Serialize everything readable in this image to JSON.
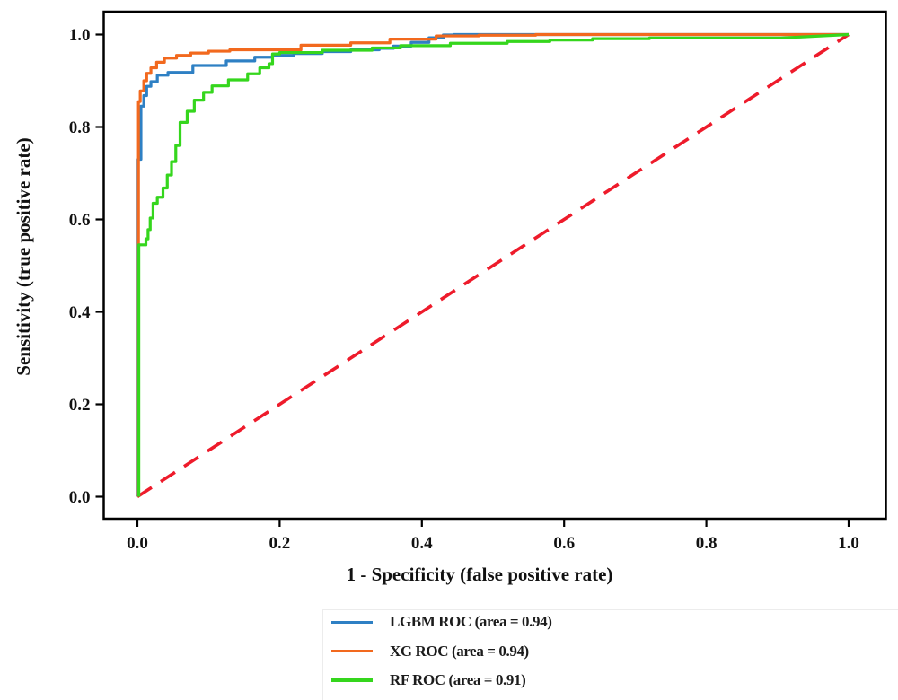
{
  "chart_data": {
    "type": "line",
    "title": "",
    "xlabel": "1 - Specificity (false positive rate)",
    "ylabel": "Sensitivity (true positive rate)",
    "xlim": [
      0,
      1
    ],
    "ylim": [
      0,
      1
    ],
    "x_ticks": [
      "0.0",
      "0.2",
      "0.4",
      "0.6",
      "0.8",
      "1.0"
    ],
    "y_ticks": [
      "0.0",
      "0.2",
      "0.4",
      "0.6",
      "0.8",
      "1.0"
    ],
    "grid": false,
    "legend_position": "below-left",
    "series": [
      {
        "name": "LGBM ROC (area = 0.94)",
        "auc": 0.94,
        "color": "#2e80c4",
        "points": [
          [
            0.001,
            0
          ],
          [
            0.001,
            0.73
          ],
          [
            0.005,
            0.73
          ],
          [
            0.005,
            0.845
          ],
          [
            0.009,
            0.845
          ],
          [
            0.009,
            0.868
          ],
          [
            0.013,
            0.868
          ],
          [
            0.013,
            0.888
          ],
          [
            0.019,
            0.888
          ],
          [
            0.019,
            0.898
          ],
          [
            0.028,
            0.898
          ],
          [
            0.028,
            0.912
          ],
          [
            0.043,
            0.912
          ],
          [
            0.043,
            0.918
          ],
          [
            0.078,
            0.918
          ],
          [
            0.078,
            0.933
          ],
          [
            0.125,
            0.933
          ],
          [
            0.125,
            0.943
          ],
          [
            0.165,
            0.943
          ],
          [
            0.165,
            0.951
          ],
          [
            0.19,
            0.951
          ],
          [
            0.19,
            0.955
          ],
          [
            0.22,
            0.955
          ],
          [
            0.22,
            0.959
          ],
          [
            0.26,
            0.959
          ],
          [
            0.26,
            0.963
          ],
          [
            0.3,
            0.963
          ],
          [
            0.3,
            0.967
          ],
          [
            0.34,
            0.967
          ],
          [
            0.34,
            0.97
          ],
          [
            0.36,
            0.97
          ],
          [
            0.36,
            0.975
          ],
          [
            0.385,
            0.975
          ],
          [
            0.385,
            0.983
          ],
          [
            0.41,
            0.983
          ],
          [
            0.41,
            0.993
          ],
          [
            0.43,
            0.993
          ],
          [
            0.43,
            0.999
          ],
          [
            0.445,
            0.999
          ],
          [
            0.445,
            1.0
          ],
          [
            1.0,
            1.0
          ]
        ]
      },
      {
        "name": "XG ROC (area = 0.94)",
        "auc": 0.94,
        "color": "#f2691e",
        "points": [
          [
            0.0015,
            0
          ],
          [
            0.0015,
            0.855
          ],
          [
            0.004,
            0.855
          ],
          [
            0.004,
            0.878
          ],
          [
            0.009,
            0.878
          ],
          [
            0.009,
            0.9
          ],
          [
            0.013,
            0.9
          ],
          [
            0.013,
            0.916
          ],
          [
            0.019,
            0.916
          ],
          [
            0.019,
            0.928
          ],
          [
            0.027,
            0.928
          ],
          [
            0.027,
            0.94
          ],
          [
            0.038,
            0.94
          ],
          [
            0.038,
            0.949
          ],
          [
            0.055,
            0.949
          ],
          [
            0.055,
            0.955
          ],
          [
            0.075,
            0.955
          ],
          [
            0.075,
            0.96
          ],
          [
            0.1,
            0.96
          ],
          [
            0.1,
            0.964
          ],
          [
            0.13,
            0.964
          ],
          [
            0.13,
            0.967
          ],
          [
            0.23,
            0.967
          ],
          [
            0.23,
            0.977
          ],
          [
            0.3,
            0.977
          ],
          [
            0.3,
            0.982
          ],
          [
            0.355,
            0.982
          ],
          [
            0.355,
            0.99
          ],
          [
            0.42,
            0.99
          ],
          [
            0.42,
            0.997
          ],
          [
            0.48,
            0.997
          ],
          [
            0.48,
            0.9985
          ],
          [
            0.56,
            0.9985
          ],
          [
            0.56,
            1.0
          ],
          [
            1.0,
            1.0
          ]
        ]
      },
      {
        "name": "RF ROC (area = 0.91)",
        "auc": 0.91,
        "color": "#35d61d",
        "points": [
          [
            0.002,
            0
          ],
          [
            0.002,
            0.545
          ],
          [
            0.012,
            0.545
          ],
          [
            0.012,
            0.558
          ],
          [
            0.015,
            0.558
          ],
          [
            0.015,
            0.578
          ],
          [
            0.018,
            0.578
          ],
          [
            0.018,
            0.603
          ],
          [
            0.022,
            0.603
          ],
          [
            0.022,
            0.635
          ],
          [
            0.028,
            0.635
          ],
          [
            0.028,
            0.648
          ],
          [
            0.036,
            0.648
          ],
          [
            0.036,
            0.668
          ],
          [
            0.042,
            0.668
          ],
          [
            0.042,
            0.696
          ],
          [
            0.048,
            0.696
          ],
          [
            0.048,
            0.725
          ],
          [
            0.054,
            0.725
          ],
          [
            0.054,
            0.76
          ],
          [
            0.06,
            0.76
          ],
          [
            0.06,
            0.81
          ],
          [
            0.07,
            0.81
          ],
          [
            0.07,
            0.834
          ],
          [
            0.08,
            0.834
          ],
          [
            0.08,
            0.858
          ],
          [
            0.093,
            0.858
          ],
          [
            0.093,
            0.875
          ],
          [
            0.105,
            0.875
          ],
          [
            0.105,
            0.889
          ],
          [
            0.128,
            0.889
          ],
          [
            0.128,
            0.902
          ],
          [
            0.155,
            0.902
          ],
          [
            0.155,
            0.915
          ],
          [
            0.172,
            0.915
          ],
          [
            0.172,
            0.928
          ],
          [
            0.185,
            0.928
          ],
          [
            0.185,
            0.937
          ],
          [
            0.19,
            0.937
          ],
          [
            0.19,
            0.958
          ],
          [
            0.2,
            0.958
          ],
          [
            0.2,
            0.961
          ],
          [
            0.26,
            0.961
          ],
          [
            0.26,
            0.966
          ],
          [
            0.33,
            0.966
          ],
          [
            0.33,
            0.971
          ],
          [
            0.37,
            0.971
          ],
          [
            0.37,
            0.976
          ],
          [
            0.44,
            0.976
          ],
          [
            0.44,
            0.981
          ],
          [
            0.52,
            0.981
          ],
          [
            0.52,
            0.985
          ],
          [
            0.58,
            0.985
          ],
          [
            0.58,
            0.988
          ],
          [
            0.64,
            0.988
          ],
          [
            0.64,
            0.991
          ],
          [
            0.72,
            0.991
          ],
          [
            0.72,
            0.9925
          ],
          [
            0.905,
            0.9925
          ],
          [
            1.0,
            1.0
          ]
        ]
      }
    ],
    "reference_line": {
      "name": "chance-diagonal",
      "color": "#ee1b2b",
      "style": "dashed",
      "points": [
        [
          0,
          0
        ],
        [
          1,
          1
        ]
      ]
    }
  }
}
